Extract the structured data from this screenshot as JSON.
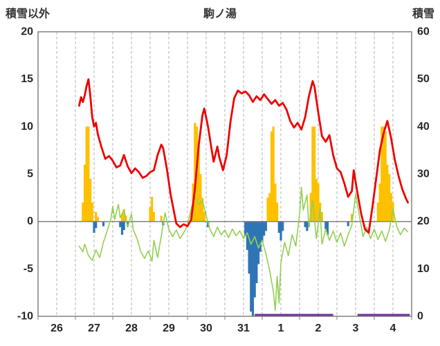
{
  "chart_data": {
    "type": "line+bar",
    "title": "駒ノ湯",
    "legend": "none",
    "x_axis": {
      "labels": [
        "26",
        "27",
        "28",
        "29",
        "30",
        "31",
        "1",
        "2",
        "3",
        "4"
      ],
      "min": 26,
      "max": 36,
      "gridline_step": 0.5
    },
    "left_axis": {
      "title": "積雪以外",
      "min": -10,
      "max": 20,
      "ticks": [
        20,
        15,
        10,
        5,
        0,
        -5,
        -10
      ]
    },
    "right_axis": {
      "title": "積雪",
      "min": 0,
      "max": 60,
      "ticks": [
        60,
        50,
        40,
        30,
        20,
        10,
        0
      ]
    },
    "colors": {
      "red_line": "#ee0000",
      "green_line": "#92d050",
      "orange_bars": "#ffc000",
      "blue_bars": "#2e75b6",
      "purple_line": "#7030a0",
      "grid": "#b3b3b3",
      "axis": "#808080",
      "zero_line": "#808080",
      "text": "#262626"
    },
    "series": {
      "red_line": {
        "type": "line",
        "axis": "left",
        "color": "#ee0000",
        "width": 2.8,
        "points": [
          [
            27.1,
            12.2
          ],
          [
            27.15,
            13.1
          ],
          [
            27.2,
            12.6
          ],
          [
            27.25,
            13.3
          ],
          [
            27.3,
            14.3
          ],
          [
            27.35,
            15.0
          ],
          [
            27.4,
            13.2
          ],
          [
            27.45,
            11.0
          ],
          [
            27.5,
            10.0
          ],
          [
            27.55,
            10.4
          ],
          [
            27.6,
            9.2
          ],
          [
            27.7,
            7.8
          ],
          [
            27.8,
            6.6
          ],
          [
            27.9,
            6.9
          ],
          [
            28.0,
            6.4
          ],
          [
            28.1,
            5.7
          ],
          [
            28.2,
            5.9
          ],
          [
            28.3,
            7.0
          ],
          [
            28.4,
            5.8
          ],
          [
            28.5,
            5.1
          ],
          [
            28.6,
            5.6
          ],
          [
            28.7,
            5.2
          ],
          [
            28.8,
            4.6
          ],
          [
            28.9,
            4.8
          ],
          [
            29.0,
            5.2
          ],
          [
            29.1,
            5.4
          ],
          [
            29.2,
            7.0
          ],
          [
            29.3,
            8.1
          ],
          [
            29.35,
            7.7
          ],
          [
            29.45,
            5.5
          ],
          [
            29.55,
            2.8
          ],
          [
            29.65,
            0.8
          ],
          [
            29.7,
            -0.2
          ],
          [
            29.8,
            -0.6
          ],
          [
            29.9,
            -0.3
          ],
          [
            30.0,
            -0.5
          ],
          [
            30.1,
            0.2
          ],
          [
            30.2,
            3.5
          ],
          [
            30.3,
            8.0
          ],
          [
            30.4,
            11.2
          ],
          [
            30.45,
            11.9
          ],
          [
            30.55,
            10.0
          ],
          [
            30.65,
            7.5
          ],
          [
            30.7,
            6.3
          ],
          [
            30.8,
            7.9
          ],
          [
            30.85,
            6.8
          ],
          [
            30.95,
            5.4
          ],
          [
            31.05,
            7.0
          ],
          [
            31.15,
            10.5
          ],
          [
            31.25,
            13.0
          ],
          [
            31.35,
            13.8
          ],
          [
            31.45,
            13.5
          ],
          [
            31.55,
            13.7
          ],
          [
            31.65,
            13.3
          ],
          [
            31.75,
            12.6
          ],
          [
            31.85,
            13.2
          ],
          [
            31.95,
            12.8
          ],
          [
            32.05,
            13.4
          ],
          [
            32.15,
            12.9
          ],
          [
            32.25,
            12.4
          ],
          [
            32.35,
            12.8
          ],
          [
            32.45,
            12.2
          ],
          [
            32.55,
            12.5
          ],
          [
            32.65,
            11.8
          ],
          [
            32.75,
            10.6
          ],
          [
            32.85,
            9.9
          ],
          [
            32.95,
            10.4
          ],
          [
            33.05,
            9.7
          ],
          [
            33.15,
            11.0
          ],
          [
            33.25,
            13.2
          ],
          [
            33.35,
            14.8
          ],
          [
            33.4,
            14.2
          ],
          [
            33.5,
            11.5
          ],
          [
            33.6,
            9.0
          ],
          [
            33.7,
            8.4
          ],
          [
            33.8,
            9.1
          ],
          [
            33.9,
            7.0
          ],
          [
            34.0,
            5.6
          ],
          [
            34.1,
            5.2
          ],
          [
            34.2,
            4.0
          ],
          [
            34.3,
            2.6
          ],
          [
            34.4,
            3.2
          ],
          [
            34.45,
            5.4
          ],
          [
            34.55,
            3.0
          ],
          [
            34.65,
            0.8
          ],
          [
            34.75,
            -0.8
          ],
          [
            34.85,
            -1.2
          ],
          [
            34.95,
            1.5
          ],
          [
            35.05,
            4.5
          ],
          [
            35.15,
            7.5
          ],
          [
            35.25,
            9.3
          ],
          [
            35.35,
            10.6
          ],
          [
            35.45,
            8.8
          ],
          [
            35.55,
            6.5
          ],
          [
            35.65,
            4.8
          ],
          [
            35.75,
            3.4
          ],
          [
            35.85,
            2.4
          ],
          [
            35.9,
            2.0
          ]
        ]
      },
      "green_line": {
        "type": "line",
        "axis": "left",
        "color": "#92d050",
        "width": 1.6,
        "points": [
          [
            27.1,
            -2.6
          ],
          [
            27.2,
            -3.2
          ],
          [
            27.25,
            -2.4
          ],
          [
            27.35,
            -3.6
          ],
          [
            27.45,
            -4.1
          ],
          [
            27.55,
            -3.0
          ],
          [
            27.65,
            -3.8
          ],
          [
            27.75,
            -2.2
          ],
          [
            27.85,
            -1.0
          ],
          [
            27.95,
            0.3
          ],
          [
            28.0,
            1.6
          ],
          [
            28.05,
            0.2
          ],
          [
            28.15,
            1.8
          ],
          [
            28.2,
            0.4
          ],
          [
            28.3,
            1.2
          ],
          [
            28.4,
            -0.6
          ],
          [
            28.5,
            0.8
          ],
          [
            28.55,
            -0.9
          ],
          [
            28.65,
            -1.8
          ],
          [
            28.75,
            -3.2
          ],
          [
            28.85,
            -3.9
          ],
          [
            28.95,
            -3.1
          ],
          [
            29.05,
            -4.2
          ],
          [
            29.1,
            -2.0
          ],
          [
            29.2,
            -3.8
          ],
          [
            29.3,
            -1.5
          ],
          [
            29.4,
            0.9
          ],
          [
            29.5,
            -0.8
          ],
          [
            29.6,
            -1.6
          ],
          [
            29.7,
            -0.9
          ],
          [
            29.8,
            -1.8
          ],
          [
            29.9,
            -1.2
          ],
          [
            30.0,
            -0.4
          ],
          [
            30.1,
            1.4
          ],
          [
            30.2,
            2.6
          ],
          [
            30.3,
            1.8
          ],
          [
            30.4,
            2.2
          ],
          [
            30.5,
            0.6
          ],
          [
            30.6,
            -0.8
          ],
          [
            30.7,
            -1.6
          ],
          [
            30.8,
            -0.6
          ],
          [
            30.9,
            -1.4
          ],
          [
            31.0,
            -0.9
          ],
          [
            31.1,
            -1.7
          ],
          [
            31.2,
            -0.8
          ],
          [
            31.3,
            -1.5
          ],
          [
            31.4,
            -1.0
          ],
          [
            31.5,
            -1.8
          ],
          [
            31.6,
            -1.2
          ],
          [
            31.7,
            -2.4
          ],
          [
            31.8,
            -1.6
          ],
          [
            31.9,
            -2.8
          ],
          [
            32.0,
            -2.0
          ],
          [
            32.1,
            -3.4
          ],
          [
            32.2,
            -5.2
          ],
          [
            32.3,
            -7.4
          ],
          [
            32.35,
            -9.4
          ],
          [
            32.4,
            -5.8
          ],
          [
            32.45,
            -8.6
          ],
          [
            32.5,
            -4.4
          ],
          [
            32.6,
            -2.2
          ],
          [
            32.7,
            -3.6
          ],
          [
            32.8,
            -1.4
          ],
          [
            32.9,
            -2.6
          ],
          [
            33.0,
            0.8
          ],
          [
            33.05,
            3.6
          ],
          [
            33.1,
            1.2
          ],
          [
            33.2,
            2.8
          ],
          [
            33.25,
            -0.6
          ],
          [
            33.35,
            2.2
          ],
          [
            33.45,
            -1.8
          ],
          [
            33.55,
            1.4
          ],
          [
            33.6,
            -2.4
          ],
          [
            33.7,
            -0.8
          ],
          [
            33.8,
            -2.0
          ],
          [
            33.9,
            -1.0
          ],
          [
            34.0,
            -2.2
          ],
          [
            34.1,
            -1.2
          ],
          [
            34.2,
            -2.6
          ],
          [
            34.3,
            -1.4
          ],
          [
            34.4,
            -0.4
          ],
          [
            34.5,
            2.9
          ],
          [
            34.6,
            0.6
          ],
          [
            34.7,
            -1.6
          ],
          [
            34.8,
            -0.6
          ],
          [
            34.9,
            -1.8
          ],
          [
            35.0,
            -0.8
          ],
          [
            35.1,
            -1.9
          ],
          [
            35.2,
            -1.0
          ],
          [
            35.3,
            -2.1
          ],
          [
            35.4,
            -0.9
          ],
          [
            35.5,
            1.3
          ],
          [
            35.6,
            -0.5
          ],
          [
            35.7,
            -1.4
          ],
          [
            35.8,
            -0.7
          ],
          [
            35.9,
            -1.1
          ]
        ]
      },
      "orange_bars": {
        "type": "bar",
        "axis": "left",
        "color": "#ffc000",
        "points": [
          [
            27.2,
            2.0
          ],
          [
            27.25,
            6.0
          ],
          [
            27.3,
            10.0
          ],
          [
            27.35,
            10.0
          ],
          [
            27.4,
            4.5
          ],
          [
            27.45,
            2.0
          ],
          [
            27.55,
            1.0
          ],
          [
            27.6,
            0.5
          ],
          [
            28.25,
            0.8
          ],
          [
            28.3,
            1.3
          ],
          [
            28.35,
            0.6
          ],
          [
            29.0,
            1.5
          ],
          [
            29.05,
            2.6
          ],
          [
            29.1,
            1.0
          ],
          [
            29.3,
            0.6
          ],
          [
            30.1,
            1.0
          ],
          [
            30.15,
            4.0
          ],
          [
            30.2,
            10.4
          ],
          [
            30.25,
            10.0
          ],
          [
            30.3,
            8.0
          ],
          [
            30.35,
            5.0
          ],
          [
            30.4,
            2.5
          ],
          [
            30.45,
            1.0
          ],
          [
            32.15,
            2.5
          ],
          [
            32.2,
            3.0
          ],
          [
            32.25,
            9.5
          ],
          [
            32.3,
            10.0
          ],
          [
            32.35,
            4.0
          ],
          [
            32.4,
            2.0
          ],
          [
            33.3,
            3.0
          ],
          [
            33.35,
            10.0
          ],
          [
            33.4,
            10.0
          ],
          [
            33.45,
            4.5
          ],
          [
            33.5,
            4.0
          ],
          [
            33.55,
            2.0
          ],
          [
            33.6,
            1.0
          ],
          [
            34.4,
            0.8
          ],
          [
            35.1,
            2.0
          ],
          [
            35.15,
            4.0
          ],
          [
            35.2,
            10.0
          ],
          [
            35.25,
            10.0
          ],
          [
            35.3,
            9.5
          ],
          [
            35.35,
            6.0
          ],
          [
            35.4,
            5.0
          ],
          [
            35.45,
            3.0
          ],
          [
            35.5,
            2.0
          ]
        ]
      },
      "blue_bars": {
        "type": "bar",
        "axis": "left",
        "color": "#2e75b6",
        "points": [
          [
            27.5,
            -1.2
          ],
          [
            27.55,
            -0.7
          ],
          [
            27.75,
            -0.5
          ],
          [
            28.2,
            -0.6
          ],
          [
            28.25,
            -1.4
          ],
          [
            28.3,
            -0.9
          ],
          [
            28.4,
            -0.5
          ],
          [
            29.35,
            -0.4
          ],
          [
            30.55,
            -0.6
          ],
          [
            31.55,
            -1.5
          ],
          [
            31.6,
            -3.0
          ],
          [
            31.65,
            -5.5
          ],
          [
            31.7,
            -9.5
          ],
          [
            31.75,
            -10.0
          ],
          [
            31.8,
            -8.0
          ],
          [
            31.85,
            -6.5
          ],
          [
            31.9,
            -4.5
          ],
          [
            31.95,
            -3.2
          ],
          [
            32.0,
            -2.2
          ],
          [
            32.05,
            -1.5
          ],
          [
            32.1,
            -1.0
          ],
          [
            32.45,
            -1.2
          ],
          [
            32.5,
            -2.0
          ],
          [
            32.55,
            -1.0
          ],
          [
            33.15,
            -0.6
          ],
          [
            33.2,
            -1.0
          ],
          [
            33.25,
            -0.5
          ],
          [
            33.7,
            -0.8
          ],
          [
            33.75,
            -1.4
          ],
          [
            34.3,
            -0.5
          ]
        ]
      },
      "purple_line": {
        "type": "segments",
        "axis": "right",
        "color": "#7030a0",
        "width": 3,
        "value": 0,
        "segments": [
          [
            31.8,
            33.9
          ],
          [
            34.55,
            35.95
          ]
        ]
      }
    }
  }
}
